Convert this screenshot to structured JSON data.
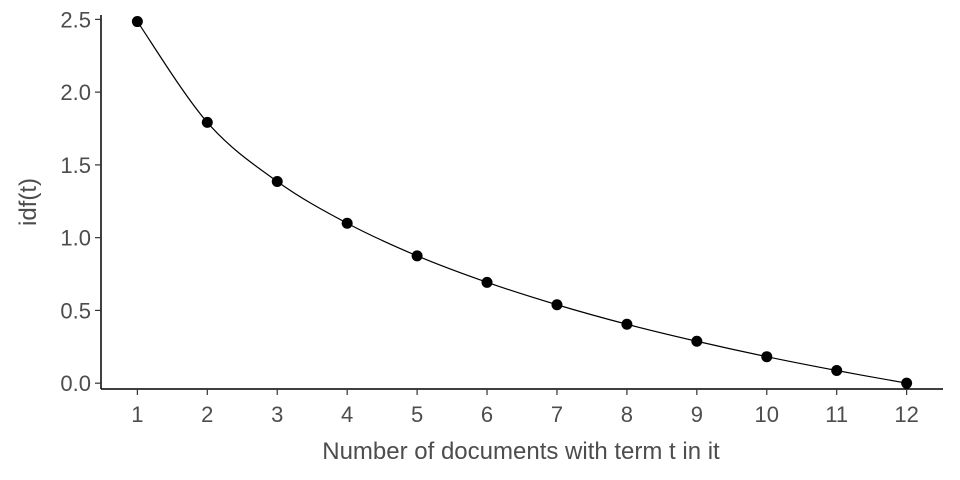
{
  "chart_data": {
    "type": "line",
    "title": "",
    "xlabel": "Number of documents with term t in it",
    "ylabel": "idf(t)",
    "x": [
      1,
      2,
      3,
      4,
      5,
      6,
      7,
      8,
      9,
      10,
      11,
      12
    ],
    "y": [
      2.485,
      1.792,
      1.386,
      1.099,
      0.875,
      0.693,
      0.539,
      0.405,
      0.288,
      0.182,
      0.087,
      0.0
    ],
    "xlim": [
      0.48,
      12.52
    ],
    "ylim": [
      -0.04,
      2.53
    ],
    "xticks": [
      "1",
      "2",
      "3",
      "4",
      "5",
      "6",
      "7",
      "8",
      "9",
      "10",
      "11",
      "12"
    ],
    "yticks": [
      "0.0",
      "0.5",
      "1.0",
      "1.5",
      "2.0",
      "2.5"
    ],
    "ytick_values": [
      0.0,
      0.5,
      1.0,
      1.5,
      2.0,
      2.5
    ],
    "grid": false,
    "legend": "none",
    "line_color": "#000000",
    "point_color": "#000000"
  }
}
